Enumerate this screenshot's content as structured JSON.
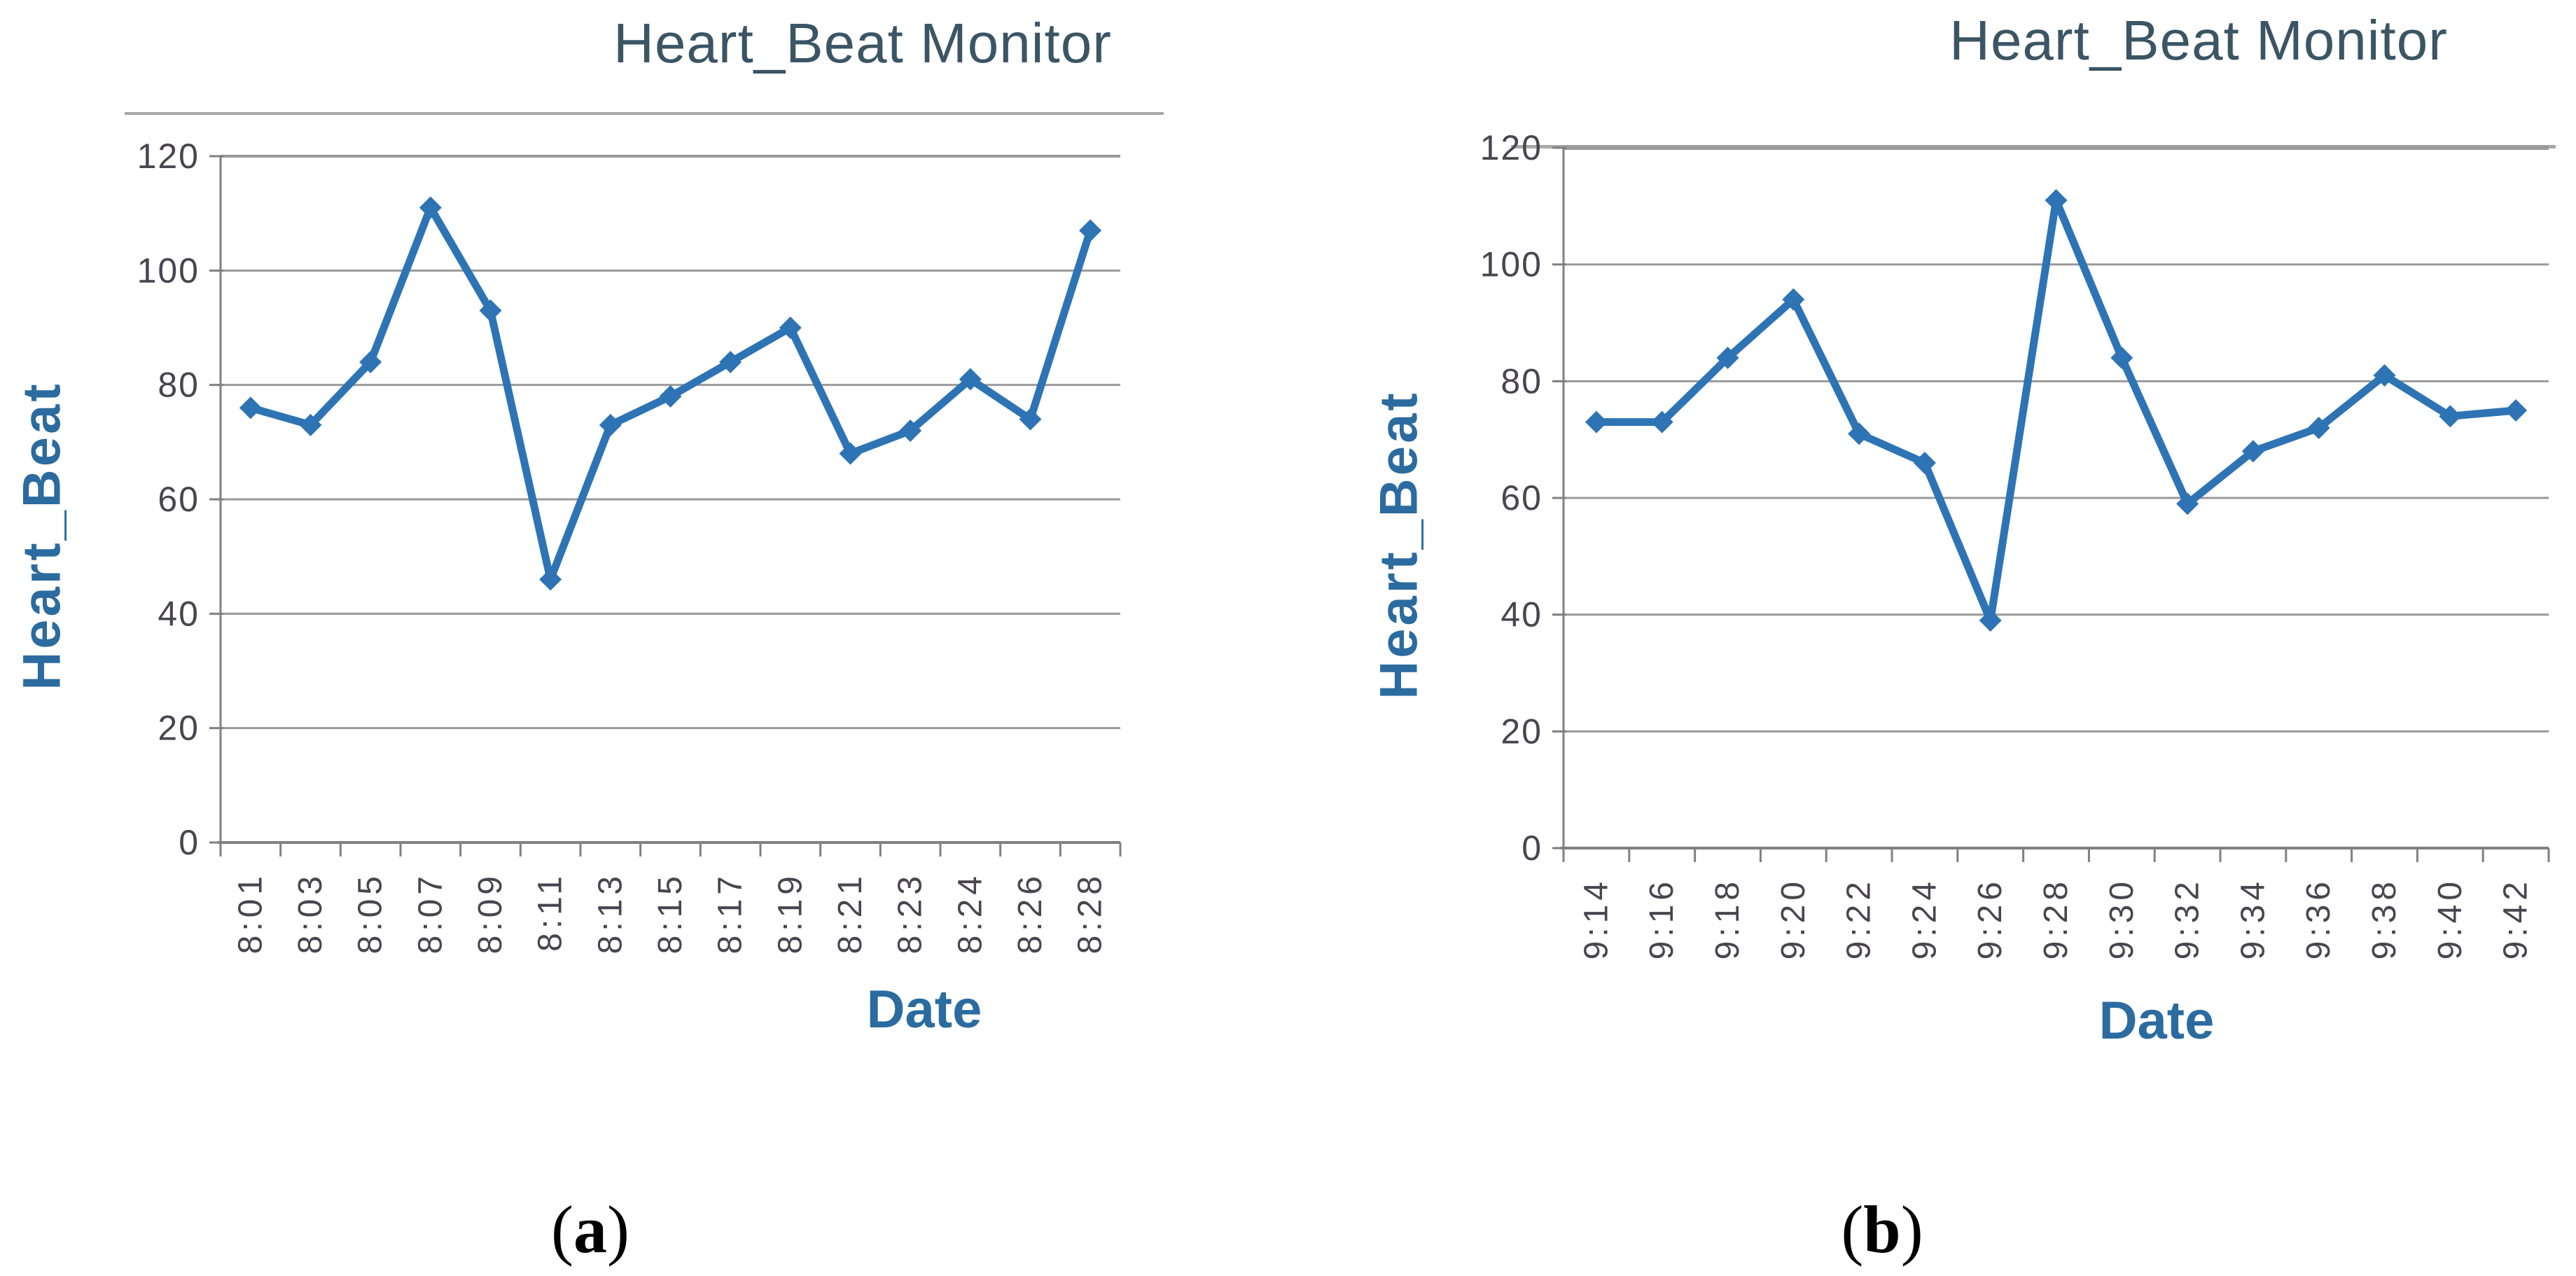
{
  "figure": {
    "background": "#ffffff"
  },
  "colors": {
    "line": "#2e74b4",
    "marker": "#2e74b4",
    "title_text": "#3b5564",
    "axis_title_text": "#2b6b9f",
    "tick_text": "#4a4450",
    "gridline": "#9a9a9a",
    "axis_line": "#808080",
    "title_underline": "#a8a8a8",
    "caption_text": "#000000"
  },
  "chart_data": [
    {
      "type": "line",
      "title": "Heart_Beat Monitor",
      "xlabel": "Date",
      "ylabel": "Heart_Beat",
      "categories": [
        "8:01",
        "8:03",
        "8:05",
        "8:07",
        "8:09",
        "8:11",
        "8:13",
        "8:15",
        "8:17",
        "8:19",
        "8:21",
        "8:23",
        "8:24",
        "8:26",
        "8:28"
      ],
      "series": [
        {
          "name": "Heart_Beat",
          "values": [
            76,
            73,
            84,
            111,
            93,
            46,
            73,
            78,
            84,
            90,
            68,
            72,
            81,
            74,
            107
          ]
        }
      ],
      "ylim": [
        0,
        120
      ],
      "y_ticks": [
        0,
        20,
        40,
        60,
        80,
        100,
        120
      ],
      "grid": true,
      "legend": "none",
      "marker": "diamond",
      "caption": {
        "open": "(",
        "letter": "a",
        "close": ")"
      }
    },
    {
      "type": "line",
      "title": "Heart_Beat Monitor",
      "xlabel": "Date",
      "ylabel": "Heart_Beat",
      "categories": [
        "9:14",
        "9:16",
        "9:18",
        "9:20",
        "9:22",
        "9:24",
        "9:26",
        "9:28",
        "9:30",
        "9:32",
        "9:34",
        "9:36",
        "9:38",
        "9:40",
        "9:42"
      ],
      "series": [
        {
          "name": "Heart_Beat",
          "values": [
            73,
            73,
            84,
            94,
            71,
            66,
            39,
            111,
            84,
            59,
            68,
            72,
            81,
            74,
            75
          ]
        }
      ],
      "ylim": [
        0,
        120
      ],
      "y_ticks": [
        0,
        20,
        40,
        60,
        80,
        100,
        120
      ],
      "grid": true,
      "legend": "none",
      "marker": "diamond",
      "caption": {
        "open": "(",
        "letter": "b",
        "close": ")"
      }
    }
  ]
}
